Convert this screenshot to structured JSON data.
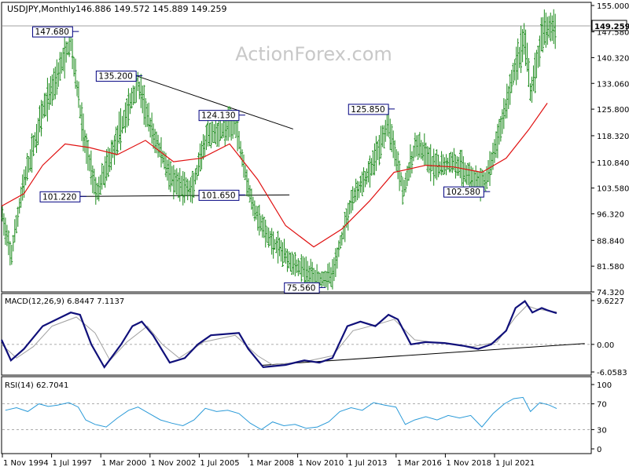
{
  "header": {
    "symbol_title": "USDJPY,Monthly",
    "ohlc": "146.886 149.572 145.889 149.259"
  },
  "watermark": "ActionForex.com",
  "colors": {
    "bars": "#1a8a1a",
    "ma": "#e01010",
    "macd": "#10107a",
    "macd_signal": "#a0a0a0",
    "rsi": "#2a9ad8",
    "grid_dash": "#909090",
    "border": "#000000",
    "label_border": "#000080"
  },
  "chart_data": [
    {
      "type": "ohlc",
      "panel": "price",
      "title": "USDJPY,Monthly",
      "ylim": [
        74.32,
        155.0
      ],
      "y_ticks": [
        "155.000",
        "147.580",
        "140.320",
        "133.060",
        "125.800",
        "118.320",
        "110.840",
        "103.580",
        "96.320",
        "88.840",
        "81.580",
        "74.320"
      ],
      "x_ticks": [
        "1 Nov 1994",
        "1 Jul 1997",
        "1 Mar 2000",
        "1 Nov 2002",
        "1 Jul 2005",
        "1 Mar 2008",
        "1 Nov 2010",
        "1 Jul 2013",
        "1 Mar 2016",
        "1 Nov 2018",
        "1 Jul 2021"
      ],
      "current_price": "149.259",
      "moving_average": [
        {
          "x": 1994.8,
          "y": 98.5
        },
        {
          "x": 1996.0,
          "y": 102
        },
        {
          "x": 1997.0,
          "y": 110
        },
        {
          "x": 1998.2,
          "y": 116
        },
        {
          "x": 1999.5,
          "y": 115
        },
        {
          "x": 2001.0,
          "y": 113
        },
        {
          "x": 2002.5,
          "y": 117
        },
        {
          "x": 2004.0,
          "y": 111
        },
        {
          "x": 2005.5,
          "y": 112
        },
        {
          "x": 2007.0,
          "y": 116
        },
        {
          "x": 2008.5,
          "y": 106
        },
        {
          "x": 2010.0,
          "y": 93
        },
        {
          "x": 2011.5,
          "y": 87
        },
        {
          "x": 2013.0,
          "y": 92
        },
        {
          "x": 2014.5,
          "y": 100
        },
        {
          "x": 2015.8,
          "y": 108
        },
        {
          "x": 2017.5,
          "y": 110
        },
        {
          "x": 2019.0,
          "y": 109.5
        },
        {
          "x": 2020.5,
          "y": 108
        },
        {
          "x": 2021.8,
          "y": 112
        },
        {
          "x": 2023.0,
          "y": 120
        },
        {
          "x": 2024.0,
          "y": 127.5
        }
      ],
      "path": [
        {
          "x": 1994.8,
          "y": 97
        },
        {
          "x": 1995.3,
          "y": 84
        },
        {
          "x": 1995.9,
          "y": 103
        },
        {
          "x": 1997.0,
          "y": 125
        },
        {
          "x": 1998.5,
          "y": 145
        },
        {
          "x": 1999.2,
          "y": 118
        },
        {
          "x": 1999.9,
          "y": 102
        },
        {
          "x": 2001.5,
          "y": 125
        },
        {
          "x": 2002.1,
          "y": 133
        },
        {
          "x": 2002.8,
          "y": 120
        },
        {
          "x": 2004.0,
          "y": 105
        },
        {
          "x": 2005.0,
          "y": 103
        },
        {
          "x": 2005.8,
          "y": 118
        },
        {
          "x": 2007.3,
          "y": 122
        },
        {
          "x": 2008.2,
          "y": 99
        },
        {
          "x": 2009.0,
          "y": 90
        },
        {
          "x": 2010.5,
          "y": 82
        },
        {
          "x": 2011.8,
          "y": 78
        },
        {
          "x": 2012.5,
          "y": 79
        },
        {
          "x": 2013.5,
          "y": 100
        },
        {
          "x": 2014.5,
          "y": 108
        },
        {
          "x": 2015.5,
          "y": 122
        },
        {
          "x": 2016.3,
          "y": 103
        },
        {
          "x": 2017.0,
          "y": 116
        },
        {
          "x": 2018.0,
          "y": 109
        },
        {
          "x": 2019.0,
          "y": 111
        },
        {
          "x": 2020.5,
          "y": 104
        },
        {
          "x": 2021.0,
          "y": 110
        },
        {
          "x": 2022.3,
          "y": 138
        },
        {
          "x": 2022.8,
          "y": 146
        },
        {
          "x": 2023.1,
          "y": 130
        },
        {
          "x": 2023.7,
          "y": 146
        },
        {
          "x": 2024.0,
          "y": 149
        },
        {
          "x": 2024.5,
          "y": 149.259
        }
      ],
      "annotations": [
        {
          "text": "147.680",
          "x": 1998.6,
          "y": 147.68
        },
        {
          "text": "135.200",
          "x": 2002.0,
          "y": 135.2
        },
        {
          "text": "124.130",
          "x": 2007.5,
          "y": 124.13
        },
        {
          "text": "101.220",
          "x": 1999.0,
          "y": 101.22
        },
        {
          "text": "101.650",
          "x": 2007.5,
          "y": 101.65
        },
        {
          "text": "75.560",
          "x": 2011.8,
          "y": 75.56
        },
        {
          "text": "125.850",
          "x": 2015.5,
          "y": 125.85
        },
        {
          "text": "102.580",
          "x": 2020.6,
          "y": 102.58
        }
      ]
    },
    {
      "type": "line",
      "panel": "macd",
      "title": "MACD(12,26,9) 6.8447 7.1137",
      "ylim": [
        -6.0583,
        9.6227
      ],
      "y_ticks": [
        "9.6227",
        "0.00",
        "-6.0583"
      ],
      "series": [
        {
          "values": [
            {
              "x": 1994.8,
              "y": 1
            },
            {
              "x": 1995.3,
              "y": -3.5
            },
            {
              "x": 1996.0,
              "y": -1
            },
            {
              "x": 1997.0,
              "y": 4
            },
            {
              "x": 1998.0,
              "y": 6
            },
            {
              "x": 1998.5,
              "y": 7
            },
            {
              "x": 1999.0,
              "y": 6.5
            },
            {
              "x": 1999.6,
              "y": 0
            },
            {
              "x": 2000.3,
              "y": -5
            },
            {
              "x": 2001.2,
              "y": 0
            },
            {
              "x": 2001.8,
              "y": 4
            },
            {
              "x": 2002.3,
              "y": 5
            },
            {
              "x": 2002.9,
              "y": 2
            },
            {
              "x": 2003.8,
              "y": -4
            },
            {
              "x": 2004.6,
              "y": -3
            },
            {
              "x": 2005.3,
              "y": 0
            },
            {
              "x": 2006.0,
              "y": 2
            },
            {
              "x": 2007.5,
              "y": 2.5
            },
            {
              "x": 2008.0,
              "y": -1
            },
            {
              "x": 2008.8,
              "y": -5
            },
            {
              "x": 2010.0,
              "y": -4.5
            },
            {
              "x": 2011.0,
              "y": -3.5
            },
            {
              "x": 2011.8,
              "y": -4
            },
            {
              "x": 2012.5,
              "y": -3
            },
            {
              "x": 2013.3,
              "y": 4
            },
            {
              "x": 2014.0,
              "y": 5
            },
            {
              "x": 2014.8,
              "y": 4
            },
            {
              "x": 2015.5,
              "y": 6.5
            },
            {
              "x": 2016.0,
              "y": 5.5
            },
            {
              "x": 2016.7,
              "y": 0
            },
            {
              "x": 2017.5,
              "y": 0.5
            },
            {
              "x": 2018.5,
              "y": 0.3
            },
            {
              "x": 2019.5,
              "y": -0.3
            },
            {
              "x": 2020.3,
              "y": -1
            },
            {
              "x": 2021.0,
              "y": 0
            },
            {
              "x": 2021.8,
              "y": 3
            },
            {
              "x": 2022.3,
              "y": 8
            },
            {
              "x": 2022.8,
              "y": 9.5
            },
            {
              "x": 2023.2,
              "y": 7
            },
            {
              "x": 2023.7,
              "y": 8
            },
            {
              "x": 2024.0,
              "y": 7.5
            },
            {
              "x": 2024.5,
              "y": 6.8447
            }
          ]
        },
        {
          "values": [
            {
              "x": 1994.8,
              "y": 0
            },
            {
              "x": 1995.6,
              "y": -3
            },
            {
              "x": 1996.5,
              "y": -0.5
            },
            {
              "x": 1997.5,
              "y": 4
            },
            {
              "x": 1998.8,
              "y": 6
            },
            {
              "x": 1999.8,
              "y": 2.5
            },
            {
              "x": 2000.6,
              "y": -3.5
            },
            {
              "x": 2001.5,
              "y": 0.5
            },
            {
              "x": 2002.6,
              "y": 4
            },
            {
              "x": 2003.4,
              "y": 0
            },
            {
              "x": 2004.3,
              "y": -3
            },
            {
              "x": 2005.6,
              "y": 0.5
            },
            {
              "x": 2007.3,
              "y": 2
            },
            {
              "x": 2008.5,
              "y": -2.5
            },
            {
              "x": 2009.3,
              "y": -4.5
            },
            {
              "x": 2011.0,
              "y": -3.8
            },
            {
              "x": 2012.5,
              "y": -2.5
            },
            {
              "x": 2013.6,
              "y": 3
            },
            {
              "x": 2015.0,
              "y": 4.5
            },
            {
              "x": 2015.8,
              "y": 5.5
            },
            {
              "x": 2016.9,
              "y": 1
            },
            {
              "x": 2018.0,
              "y": 0.4
            },
            {
              "x": 2020.0,
              "y": -0.5
            },
            {
              "x": 2021.3,
              "y": 0.5
            },
            {
              "x": 2022.3,
              "y": 6
            },
            {
              "x": 2022.9,
              "y": 8.5
            },
            {
              "x": 2023.4,
              "y": 7.8
            },
            {
              "x": 2024.5,
              "y": 7.1137
            }
          ]
        }
      ],
      "trendline": [
        {
          "x": 2008.7,
          "y": -4.6
        },
        {
          "x": 2026.0,
          "y": 0.2
        }
      ]
    },
    {
      "type": "line",
      "panel": "rsi",
      "title": "RSI(14) 62.7041",
      "ylim": [
        0,
        100
      ],
      "y_ticks": [
        "100",
        "70",
        "30",
        "0"
      ],
      "levels": [
        70,
        30
      ],
      "series": [
        {
          "values": [
            {
              "x": 1995.0,
              "y": 60
            },
            {
              "x": 1995.6,
              "y": 64
            },
            {
              "x": 1996.2,
              "y": 58
            },
            {
              "x": 1996.8,
              "y": 70
            },
            {
              "x": 1997.3,
              "y": 66
            },
            {
              "x": 1997.8,
              "y": 68
            },
            {
              "x": 1998.4,
              "y": 72
            },
            {
              "x": 1998.9,
              "y": 65
            },
            {
              "x": 1999.3,
              "y": 45
            },
            {
              "x": 1999.8,
              "y": 38
            },
            {
              "x": 2000.4,
              "y": 34
            },
            {
              "x": 2001.0,
              "y": 48
            },
            {
              "x": 2001.6,
              "y": 60
            },
            {
              "x": 2002.1,
              "y": 65
            },
            {
              "x": 2002.7,
              "y": 55
            },
            {
              "x": 2003.3,
              "y": 45
            },
            {
              "x": 2003.9,
              "y": 40
            },
            {
              "x": 2004.5,
              "y": 36
            },
            {
              "x": 2005.1,
              "y": 45
            },
            {
              "x": 2005.7,
              "y": 63
            },
            {
              "x": 2006.3,
              "y": 58
            },
            {
              "x": 2006.9,
              "y": 60
            },
            {
              "x": 2007.5,
              "y": 55
            },
            {
              "x": 2008.1,
              "y": 40
            },
            {
              "x": 2008.7,
              "y": 30
            },
            {
              "x": 2009.3,
              "y": 42
            },
            {
              "x": 2009.9,
              "y": 36
            },
            {
              "x": 2010.5,
              "y": 38
            },
            {
              "x": 2011.1,
              "y": 32
            },
            {
              "x": 2011.7,
              "y": 34
            },
            {
              "x": 2012.3,
              "y": 42
            },
            {
              "x": 2012.9,
              "y": 58
            },
            {
              "x": 2013.5,
              "y": 64
            },
            {
              "x": 2014.1,
              "y": 60
            },
            {
              "x": 2014.7,
              "y": 72
            },
            {
              "x": 2015.3,
              "y": 68
            },
            {
              "x": 2015.9,
              "y": 65
            },
            {
              "x": 2016.4,
              "y": 38
            },
            {
              "x": 2016.9,
              "y": 45
            },
            {
              "x": 2017.5,
              "y": 50
            },
            {
              "x": 2018.1,
              "y": 45
            },
            {
              "x": 2018.7,
              "y": 52
            },
            {
              "x": 2019.3,
              "y": 48
            },
            {
              "x": 2019.9,
              "y": 52
            },
            {
              "x": 2020.5,
              "y": 34
            },
            {
              "x": 2021.1,
              "y": 55
            },
            {
              "x": 2021.7,
              "y": 70
            },
            {
              "x": 2022.2,
              "y": 78
            },
            {
              "x": 2022.7,
              "y": 80
            },
            {
              "x": 2023.1,
              "y": 58
            },
            {
              "x": 2023.6,
              "y": 72
            },
            {
              "x": 2024.1,
              "y": 68
            },
            {
              "x": 2024.5,
              "y": 62.7041
            }
          ]
        }
      ]
    }
  ]
}
